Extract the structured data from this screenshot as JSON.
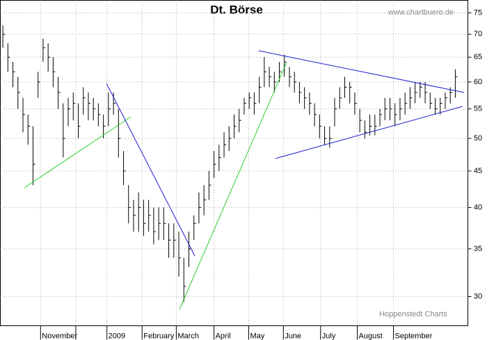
{
  "chart_data": {
    "type": "ohlc",
    "title": "Dt. Börse",
    "source": "www.chartbuero.de",
    "credit": "Hoppenstedt Charts",
    "log_scale": true,
    "grid": true,
    "color": "#000000",
    "x": [
      0,
      1,
      2,
      3,
      4,
      5,
      6,
      7,
      8,
      9,
      10,
      11,
      12,
      13,
      14,
      15,
      16,
      17,
      18,
      19,
      20,
      21,
      22,
      23,
      24,
      25,
      26,
      27,
      28,
      29,
      30,
      31,
      32,
      33,
      34,
      35,
      36,
      37,
      38,
      39,
      40,
      41,
      42,
      43,
      44,
      45,
      46,
      47,
      48,
      49,
      50,
      51,
      52,
      53,
      54,
      55,
      56,
      57,
      58,
      59,
      60,
      61,
      62,
      63,
      64,
      65,
      66,
      67,
      68,
      69,
      70,
      71,
      72,
      73,
      74,
      75,
      76,
      77,
      78,
      79,
      80,
      81,
      82,
      83,
      84,
      85,
      86,
      87,
      88,
      89,
      90
    ],
    "high": [
      72,
      68,
      64,
      61,
      57,
      54,
      52,
      62,
      69,
      68,
      65,
      61,
      56,
      57,
      58,
      56,
      59,
      58,
      57,
      56,
      54,
      58,
      58,
      55,
      48,
      43,
      41,
      42,
      41,
      41,
      40,
      40,
      40,
      38,
      38,
      37,
      34,
      37,
      39,
      42,
      43,
      45,
      48,
      49,
      51,
      52,
      54,
      55,
      57,
      58,
      58,
      61,
      65,
      63,
      62,
      64,
      65.5,
      63,
      62,
      60,
      59,
      58,
      56,
      54,
      52,
      52,
      57,
      59,
      61,
      60,
      58,
      55,
      53,
      54,
      54,
      55,
      57,
      57,
      56,
      57,
      58,
      59,
      60,
      60,
      60,
      58,
      57,
      57,
      58,
      59,
      62.5
    ],
    "low": [
      67,
      62,
      59,
      55,
      51,
      49,
      43,
      57,
      64,
      62,
      59,
      55,
      47,
      52,
      53,
      50,
      54,
      53,
      53,
      52,
      50,
      52,
      54,
      47,
      43,
      38,
      37,
      37,
      36.5,
      37,
      35.5,
      36,
      36,
      34,
      34,
      32,
      29.5,
      33,
      36,
      38,
      39,
      41,
      44,
      45,
      47,
      48,
      50,
      51,
      54,
      55,
      54,
      56,
      59,
      59,
      58,
      60,
      61,
      59,
      58,
      56,
      55,
      54,
      52,
      50,
      49,
      48.5,
      52,
      55,
      57,
      56,
      54,
      51,
      50,
      50.5,
      50.5,
      52,
      53,
      53,
      52,
      53,
      54,
      55,
      56,
      57,
      56,
      55,
      54,
      54,
      55,
      56,
      57
    ],
    "close": [
      70,
      65,
      62,
      58,
      54,
      52,
      46,
      60,
      67,
      65,
      62,
      58,
      50,
      55,
      56,
      52,
      57,
      56,
      55,
      54,
      52,
      55,
      56,
      50,
      45,
      40,
      39,
      40,
      38,
      39,
      37,
      38,
      38,
      36,
      36,
      34,
      31,
      35,
      38,
      40,
      41,
      43,
      46,
      47,
      49,
      50,
      52,
      53,
      56,
      57,
      56,
      59,
      62,
      61,
      60,
      62,
      64,
      61,
      60,
      58,
      57,
      56,
      54,
      52,
      50,
      50,
      55,
      57,
      59,
      59,
      56,
      53,
      51,
      52,
      52,
      54,
      55,
      55,
      54,
      55,
      56,
      57,
      58,
      59,
      58,
      56,
      55,
      56,
      57,
      58,
      61
    ],
    "xlim": [
      -0.5,
      92.5
    ],
    "xticks": [
      {
        "value": 7.5,
        "label": "November"
      },
      {
        "value": 14.5,
        "label": null
      },
      {
        "value": 20.7,
        "label": "2009"
      },
      {
        "value": 27.7,
        "label": "February"
      },
      {
        "value": 34.5,
        "label": "March"
      },
      {
        "value": 42.0,
        "label": "April"
      },
      {
        "value": 48.9,
        "label": "May"
      },
      {
        "value": 55.8,
        "label": "June"
      },
      {
        "value": 63.2,
        "label": "July"
      },
      {
        "value": 70.5,
        "label": "August"
      },
      {
        "value": 77.7,
        "label": "September"
      }
    ],
    "ylim": [
      27.3,
      78.1
    ],
    "yticks": [
      30,
      35,
      40,
      45,
      50,
      55,
      60,
      65,
      70,
      75
    ]
  }
}
